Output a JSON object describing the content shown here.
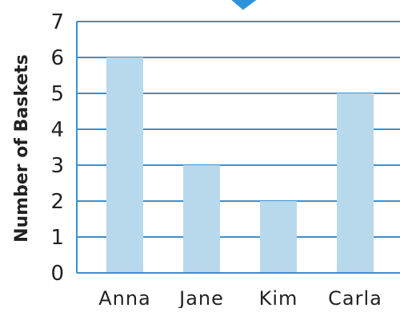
{
  "chart_data": {
    "type": "bar",
    "title": "",
    "xlabel": "",
    "ylabel": "Number of Baskets",
    "categories": [
      "Anna",
      "Jane",
      "Kim",
      "Carla"
    ],
    "values": [
      6,
      3,
      2,
      5
    ],
    "ylim": [
      0,
      7
    ],
    "yticks": [
      "0",
      "1",
      "2",
      "3",
      "4",
      "5",
      "6",
      "7"
    ],
    "grid": true,
    "legend": "none",
    "colors": {
      "bar": "#b8d8ec",
      "grid": "#3a8fd0",
      "frame": "#3a8fd0",
      "title_fragment": "#2a93dc"
    }
  }
}
